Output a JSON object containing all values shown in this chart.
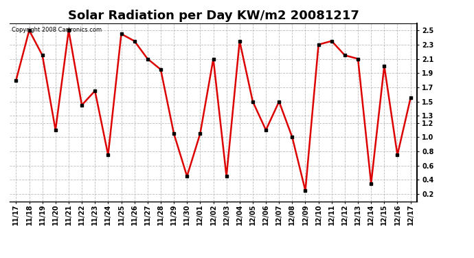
{
  "title": "Solar Radiation per Day KW/m2 20081217",
  "copyright_text": "Copyright 2008 Cartronics.com",
  "labels": [
    "11/17",
    "11/18",
    "11/19",
    "11/20",
    "11/21",
    "11/22",
    "11/23",
    "11/24",
    "11/25",
    "11/26",
    "11/27",
    "11/28",
    "11/29",
    "11/30",
    "12/01",
    "12/02",
    "12/03",
    "12/04",
    "12/05",
    "12/06",
    "12/07",
    "12/08",
    "12/09",
    "12/10",
    "12/11",
    "12/12",
    "12/13",
    "12/14",
    "12/15",
    "12/16",
    "12/17"
  ],
  "values": [
    1.8,
    2.5,
    2.15,
    1.1,
    2.5,
    1.45,
    1.65,
    0.75,
    2.45,
    2.35,
    2.1,
    1.95,
    1.05,
    0.45,
    1.05,
    2.1,
    0.45,
    2.35,
    1.5,
    1.1,
    1.5,
    1.0,
    0.25,
    2.3,
    2.35,
    2.15,
    2.1,
    0.35,
    2.0,
    0.75,
    1.55
  ],
  "line_color": "#dd0000",
  "marker": "s",
  "marker_size": 2.5,
  "marker_color": "#000000",
  "background_color": "#ffffff",
  "grid_color": "#aaaaaa",
  "ylim": [
    0.1,
    2.6
  ],
  "yticks": [
    0.2,
    0.4,
    0.6,
    0.8,
    1.0,
    1.2,
    1.3,
    1.5,
    1.7,
    1.9,
    2.1,
    2.3,
    2.5
  ],
  "title_fontsize": 13,
  "tick_fontsize": 7,
  "copyright_fontsize": 6
}
